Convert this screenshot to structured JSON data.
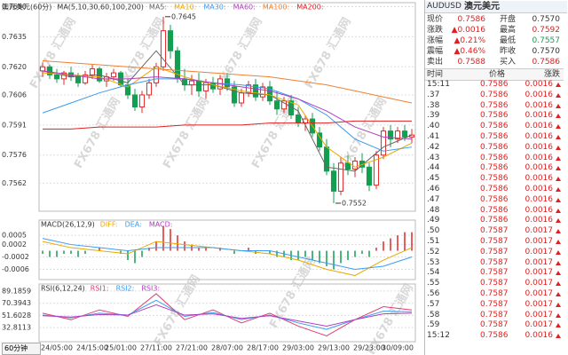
{
  "chart_data": [
    {
      "type": "candlestick",
      "title": "澳元美元(60分)",
      "indicator": "MA(5,10,30,60,100,200)",
      "categories": [
        null,
        null,
        "24/05:00",
        null,
        null,
        null,
        null,
        "24/15:00",
        null,
        null,
        null,
        "25/01:00",
        null,
        null,
        null,
        null,
        "27/11:00",
        null,
        null,
        null,
        null,
        "27/21:00",
        null,
        null,
        null,
        null,
        "28/07:00",
        null,
        null,
        null,
        null,
        "28/17:00",
        null,
        null,
        null,
        null,
        "29/03:00",
        null,
        null,
        null,
        null,
        "29/13:00",
        null,
        null,
        null,
        null,
        "29/23:00",
        null,
        null,
        null,
        "30/09:00",
        null,
        null
      ],
      "open": [
        0.7618,
        0.762,
        0.7616,
        0.7614,
        0.7617,
        0.7615,
        0.7612,
        0.7616,
        0.7619,
        0.7613,
        0.7615,
        0.7617,
        0.7611,
        0.7606,
        0.76,
        0.7606,
        0.7612,
        0.762,
        0.7638,
        0.7628,
        0.7614,
        0.7611,
        0.7613,
        0.7608,
        0.7612,
        0.7609,
        0.7614,
        0.761,
        0.7602,
        0.7607,
        0.7611,
        0.7605,
        0.761,
        0.7603,
        0.7599,
        0.7603,
        0.7596,
        0.7592,
        0.7594,
        0.7587,
        0.758,
        0.7568,
        0.7558,
        0.7572,
        0.7569,
        0.7573,
        0.757,
        0.7561,
        0.7576,
        0.7588,
        0.7584,
        0.7588,
        0.7585
      ],
      "high": [
        0.7622,
        0.7621,
        0.7619,
        0.7618,
        0.762,
        0.7617,
        0.7618,
        0.7621,
        0.762,
        0.7617,
        0.7619,
        0.7618,
        0.7614,
        0.7609,
        0.7608,
        0.7614,
        0.7622,
        0.7645,
        0.7641,
        0.763,
        0.7619,
        0.7616,
        0.7617,
        0.7614,
        0.7615,
        0.7616,
        0.7617,
        0.7613,
        0.7609,
        0.7613,
        0.7614,
        0.7612,
        0.7613,
        0.7608,
        0.7605,
        0.7606,
        0.76,
        0.7596,
        0.7597,
        0.759,
        0.7584,
        0.7572,
        0.7575,
        0.7576,
        0.7575,
        0.7577,
        0.7572,
        0.7578,
        0.759,
        0.7591,
        0.759,
        0.7591,
        0.7589
      ],
      "low": [
        0.7615,
        0.7614,
        0.7612,
        0.7611,
        0.7613,
        0.761,
        0.7611,
        0.7614,
        0.7612,
        0.761,
        0.7613,
        0.761,
        0.7604,
        0.7598,
        0.7597,
        0.7604,
        0.761,
        0.7618,
        0.7624,
        0.7612,
        0.7608,
        0.7606,
        0.7605,
        0.7604,
        0.7607,
        0.7606,
        0.7608,
        0.76,
        0.76,
        0.7605,
        0.7603,
        0.7603,
        0.7601,
        0.7596,
        0.7597,
        0.7594,
        0.759,
        0.7588,
        0.7585,
        0.7578,
        0.7566,
        0.7552,
        0.7556,
        0.7566,
        0.7565,
        0.7567,
        0.7558,
        0.7559,
        0.7574,
        0.758,
        0.7582,
        0.7583,
        0.7582
      ],
      "close": [
        0.762,
        0.7616,
        0.7614,
        0.7617,
        0.7615,
        0.7612,
        0.7616,
        0.7619,
        0.7613,
        0.7615,
        0.7617,
        0.7611,
        0.7606,
        0.76,
        0.7606,
        0.7612,
        0.762,
        0.7638,
        0.7628,
        0.7614,
        0.7611,
        0.7613,
        0.7608,
        0.7612,
        0.7609,
        0.7614,
        0.761,
        0.7602,
        0.7607,
        0.7611,
        0.7605,
        0.761,
        0.7603,
        0.7599,
        0.7603,
        0.7596,
        0.7592,
        0.7594,
        0.7587,
        0.758,
        0.7568,
        0.7558,
        0.7572,
        0.7569,
        0.7573,
        0.757,
        0.7561,
        0.7576,
        0.7588,
        0.7584,
        0.7588,
        0.7585,
        0.7586
      ],
      "up_color": "#e02828",
      "down_color": "#12a050",
      "ylim": [
        0.7548,
        0.7652
      ],
      "yticks": [
        {
          "value": 0.765,
          "label": "0.7650"
        },
        0.7635,
        {
          "value": 0.762,
          "label": "0.7620"
        },
        0.7606,
        0.7591,
        0.7576,
        0.7562
      ],
      "grid": true,
      "series": [
        {
          "name": "MA5:",
          "color": "#666666",
          "x": [
            0,
            4,
            8,
            12,
            16,
            20,
            24,
            28,
            32,
            36,
            40,
            44,
            48,
            52
          ],
          "values": [
            0.7618,
            0.7615,
            0.7616,
            0.7612,
            0.7628,
            0.7611,
            0.7611,
            0.7607,
            0.7606,
            0.7598,
            0.757,
            0.7568,
            0.758,
            0.7586
          ]
        },
        {
          "name": "MA10:",
          "color": "#e8a800",
          "x": [
            0,
            4,
            8,
            12,
            16,
            20,
            24,
            28,
            32,
            36,
            40,
            44,
            48,
            52
          ],
          "values": [
            0.7617,
            0.7616,
            0.7615,
            0.761,
            0.762,
            0.7615,
            0.7611,
            0.7608,
            0.7606,
            0.7601,
            0.758,
            0.757,
            0.7575,
            0.7582
          ]
        },
        {
          "name": "MA30:",
          "color": "#3c9cf0",
          "x": [
            0,
            4,
            8,
            12,
            16,
            20,
            24,
            28,
            32,
            36,
            40,
            44,
            48,
            52
          ],
          "values": [
            0.7597,
            0.7602,
            0.7607,
            0.7611,
            0.7614,
            0.7614,
            0.7612,
            0.7611,
            0.7609,
            0.7604,
            0.7596,
            0.7584,
            0.7578,
            0.758
          ]
        },
        {
          "name": "MA60:",
          "color": "#b040c0",
          "x": [
            0,
            4,
            8,
            12,
            16,
            20,
            24,
            28,
            32,
            36,
            40,
            44,
            48,
            52
          ],
          "values": [
            0.7618,
            0.7616,
            0.7614,
            0.7614,
            0.7615,
            0.7614,
            0.7612,
            0.761,
            0.7608,
            0.7604,
            0.7598,
            0.759,
            0.7585,
            0.7584
          ]
        },
        {
          "name": "MA100:",
          "color": "#f08030",
          "x": [
            0,
            4,
            8,
            12,
            16,
            20,
            24,
            28,
            32,
            36,
            40,
            44,
            48,
            52
          ],
          "values": [
            0.7623,
            0.7622,
            0.7621,
            0.762,
            0.7619,
            0.7618,
            0.7617,
            0.7616,
            0.7615,
            0.7613,
            0.7611,
            0.7608,
            0.7605,
            0.7602
          ]
        },
        {
          "name": "MA200:",
          "color": "#e02020",
          "x": [
            0,
            4,
            8,
            12,
            16,
            20,
            24,
            28,
            32,
            36,
            40,
            44,
            48,
            52
          ],
          "values": [
            0.7589,
            0.7589,
            0.759,
            0.759,
            0.759,
            0.7591,
            0.7591,
            0.7591,
            0.7592,
            0.7592,
            0.7592,
            0.7593,
            0.7593,
            0.7593
          ]
        }
      ]
    },
    {
      "type": "macd",
      "title": "MACD(26,12,9)",
      "ylim": [
        -0.00093,
        0.00099
      ],
      "yticks": [
        0.0005,
        0.0002,
        -0.0002,
        -0.0006
      ],
      "grid": true,
      "bars": {
        "name": "MACD:",
        "color": "#b040c0",
        "up_color": "#e02828",
        "down_color": "#12a050",
        "values": [
          -0.0001,
          -0.0002,
          -0.0002,
          -0.0001,
          -0.0001,
          -0.0002,
          -0.0001,
          0,
          0.0001,
          0,
          0,
          -0.0001,
          -0.0003,
          -0.0004,
          -0.0002,
          0.0001,
          0.0003,
          0.0008,
          0.0007,
          0.0005,
          0.0003,
          0.0002,
          0.0001,
          0.0001,
          0,
          0.0001,
          0,
          -0.0001,
          0,
          0.0001,
          -0.0001,
          0,
          -0.0001,
          -0.0002,
          -0.0002,
          -0.0003,
          -0.0003,
          -0.0002,
          -0.0003,
          -0.0004,
          -0.0005,
          -0.0006,
          -0.0004,
          -0.0003,
          -0.0002,
          -0.0001,
          -0.0002,
          0.0001,
          0.0003,
          0.0004,
          0.0005,
          0.0006,
          0.0006
        ]
      },
      "series": [
        {
          "name": "DIFF:",
          "color": "#e8a800",
          "x": [
            0,
            4,
            8,
            12,
            16,
            20,
            24,
            28,
            32,
            36,
            40,
            44,
            48,
            52
          ],
          "values": [
            0.0003,
            0.0001,
            0,
            -0.0001,
            0.0003,
            0.0002,
            0.0001,
            0,
            -0.0001,
            -0.0003,
            -0.0006,
            -0.0008,
            -0.0003,
            0.0001
          ]
        },
        {
          "name": "DEA:",
          "color": "#3c9cf0",
          "x": [
            0,
            4,
            8,
            12,
            16,
            20,
            24,
            28,
            32,
            36,
            40,
            44,
            48,
            52
          ],
          "values": [
            0.0004,
            0.0002,
            0.0001,
            0,
            0.0001,
            0.0001,
            0.0001,
            0,
            0,
            -0.0002,
            -0.0004,
            -0.0006,
            -0.0005,
            -0.0002
          ]
        }
      ]
    },
    {
      "type": "line",
      "title": "RSI(6,12,24)",
      "ylim": [
        11,
        100
      ],
      "yticks": [
        89.1859,
        70.3943,
        51.6028,
        32.8113
      ],
      "grid": true,
      "series": [
        {
          "name": "RSI1:",
          "color": "#e04070",
          "x": [
            0,
            4,
            8,
            12,
            16,
            20,
            24,
            28,
            32,
            36,
            40,
            44,
            48,
            52
          ],
          "values": [
            55,
            45,
            60,
            50,
            85,
            45,
            60,
            40,
            55,
            35,
            20,
            45,
            65,
            60
          ]
        },
        {
          "name": "RSI2:",
          "color": "#3c9cf0",
          "x": [
            0,
            4,
            8,
            12,
            16,
            20,
            24,
            28,
            32,
            36,
            40,
            44,
            48,
            52
          ],
          "values": [
            52,
            48,
            55,
            52,
            75,
            50,
            56,
            45,
            52,
            40,
            30,
            45,
            58,
            57
          ]
        },
        {
          "name": "RSI3:",
          "color": "#b040c0",
          "x": [
            0,
            4,
            8,
            12,
            16,
            20,
            24,
            28,
            32,
            36,
            40,
            44,
            48,
            52
          ],
          "values": [
            51,
            49,
            53,
            52,
            68,
            52,
            54,
            47,
            51,
            43,
            35,
            45,
            54,
            55
          ]
        }
      ]
    }
  ],
  "period": "60分钟",
  "watermark": "FX678 汇通网",
  "quote": {
    "symbol": "AUDUSD",
    "name": "澳元美元",
    "rows": [
      [
        "现价",
        "0.7586",
        "开盘",
        "0.7570"
      ],
      [
        "涨跌",
        "▲0.0016",
        "最高",
        "0.7592"
      ],
      [
        "涨幅",
        "▲0.21%",
        "最低",
        "0.7557"
      ],
      [
        "震幅",
        "▲0.46%",
        "昨收",
        "0.7570"
      ],
      [
        "卖出",
        "0.7588",
        "买入",
        "0.7586"
      ]
    ]
  },
  "trades": {
    "header": [
      "时间",
      "价格",
      "涨跌"
    ],
    "rows": [
      [
        "15:11",
        "0.7586",
        "0.0016"
      ],
      [
        ".37",
        "0.7586",
        "0.0016"
      ],
      [
        ".38",
        "0.7586",
        "0.0016"
      ],
      [
        ".39",
        "0.7586",
        "0.0016"
      ],
      [
        ".40",
        "0.7586",
        "0.0016"
      ],
      [
        ".41",
        "0.7586",
        "0.0016"
      ],
      [
        ".42",
        "0.7586",
        "0.0016"
      ],
      [
        ".43",
        "0.7586",
        "0.0016"
      ],
      [
        ".44",
        "0.7586",
        "0.0016"
      ],
      [
        ".45",
        "0.7586",
        "0.0016"
      ],
      [
        ".46",
        "0.7586",
        "0.0016"
      ],
      [
        ".47",
        "0.7586",
        "0.0016"
      ],
      [
        ".48",
        "0.7586",
        "0.0016"
      ],
      [
        ".49",
        "0.7586",
        "0.0016"
      ],
      [
        ".50",
        "0.7587",
        "0.0017"
      ],
      [
        ".51",
        "0.7587",
        "0.0017"
      ],
      [
        ".52",
        "0.7587",
        "0.0017"
      ],
      [
        ".53",
        "0.7587",
        "0.0017"
      ],
      [
        ".54",
        "0.7587",
        "0.0017"
      ],
      [
        ".55",
        "0.7587",
        "0.0017"
      ],
      [
        ".56",
        "0.7587",
        "0.0017"
      ],
      [
        ".57",
        "0.7587",
        "0.0017"
      ],
      [
        ".58",
        "0.7587",
        "0.0017"
      ],
      [
        ".59",
        "0.7587",
        "0.0017"
      ],
      [
        "15:12",
        "0.7586",
        "0.0016"
      ]
    ]
  }
}
